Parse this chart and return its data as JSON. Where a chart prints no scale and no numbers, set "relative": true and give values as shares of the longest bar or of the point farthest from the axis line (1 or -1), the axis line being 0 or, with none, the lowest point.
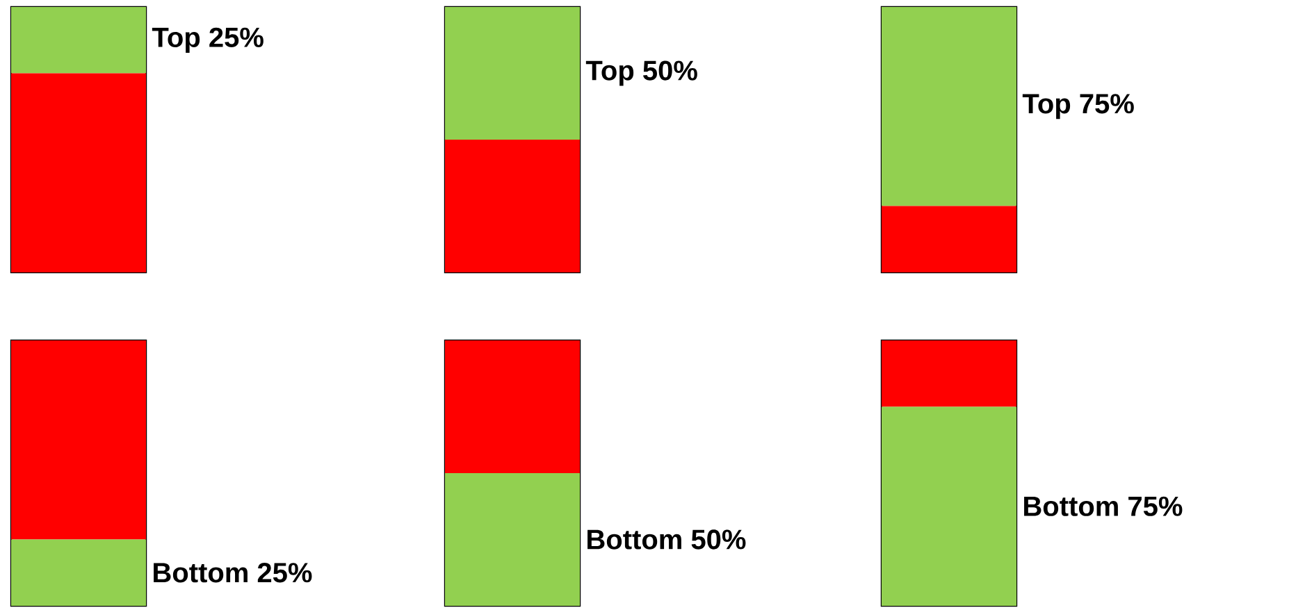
{
  "chart_data": [
    {
      "type": "bar",
      "stacked": true,
      "relative": true,
      "categories": [
        null
      ],
      "series": [
        {
          "color": "#ff0000",
          "values": [
            0.75
          ]
        },
        {
          "color": "#92d050",
          "values": [
            0.25
          ]
        }
      ],
      "annotations": [
        "Top 25%"
      ]
    },
    {
      "type": "bar",
      "stacked": true,
      "relative": true,
      "categories": [
        null
      ],
      "series": [
        {
          "color": "#ff0000",
          "values": [
            0.5
          ]
        },
        {
          "color": "#92d050",
          "values": [
            0.5
          ]
        }
      ],
      "annotations": [
        "Top 50%"
      ]
    },
    {
      "type": "bar",
      "stacked": true,
      "relative": true,
      "categories": [
        null
      ],
      "series": [
        {
          "color": "#ff0000",
          "values": [
            0.25
          ]
        },
        {
          "color": "#92d050",
          "values": [
            0.75
          ]
        }
      ],
      "annotations": [
        "Top 75%"
      ]
    },
    {
      "type": "bar",
      "stacked": true,
      "relative": true,
      "categories": [
        null
      ],
      "series": [
        {
          "color": "#92d050",
          "values": [
            0.25
          ]
        },
        {
          "color": "#ff0000",
          "values": [
            0.75
          ]
        }
      ],
      "annotations": [
        "Bottom 25%"
      ]
    },
    {
      "type": "bar",
      "stacked": true,
      "relative": true,
      "categories": [
        null
      ],
      "series": [
        {
          "color": "#92d050",
          "values": [
            0.5
          ]
        },
        {
          "color": "#ff0000",
          "values": [
            0.5
          ]
        }
      ],
      "annotations": [
        "Bottom 50%"
      ]
    },
    {
      "type": "bar",
      "stacked": true,
      "relative": true,
      "categories": [
        null
      ],
      "series": [
        {
          "color": "#92d050",
          "values": [
            0.75
          ]
        },
        {
          "color": "#ff0000",
          "values": [
            0.25
          ]
        }
      ],
      "annotations": [
        "Bottom 75%"
      ]
    }
  ]
}
